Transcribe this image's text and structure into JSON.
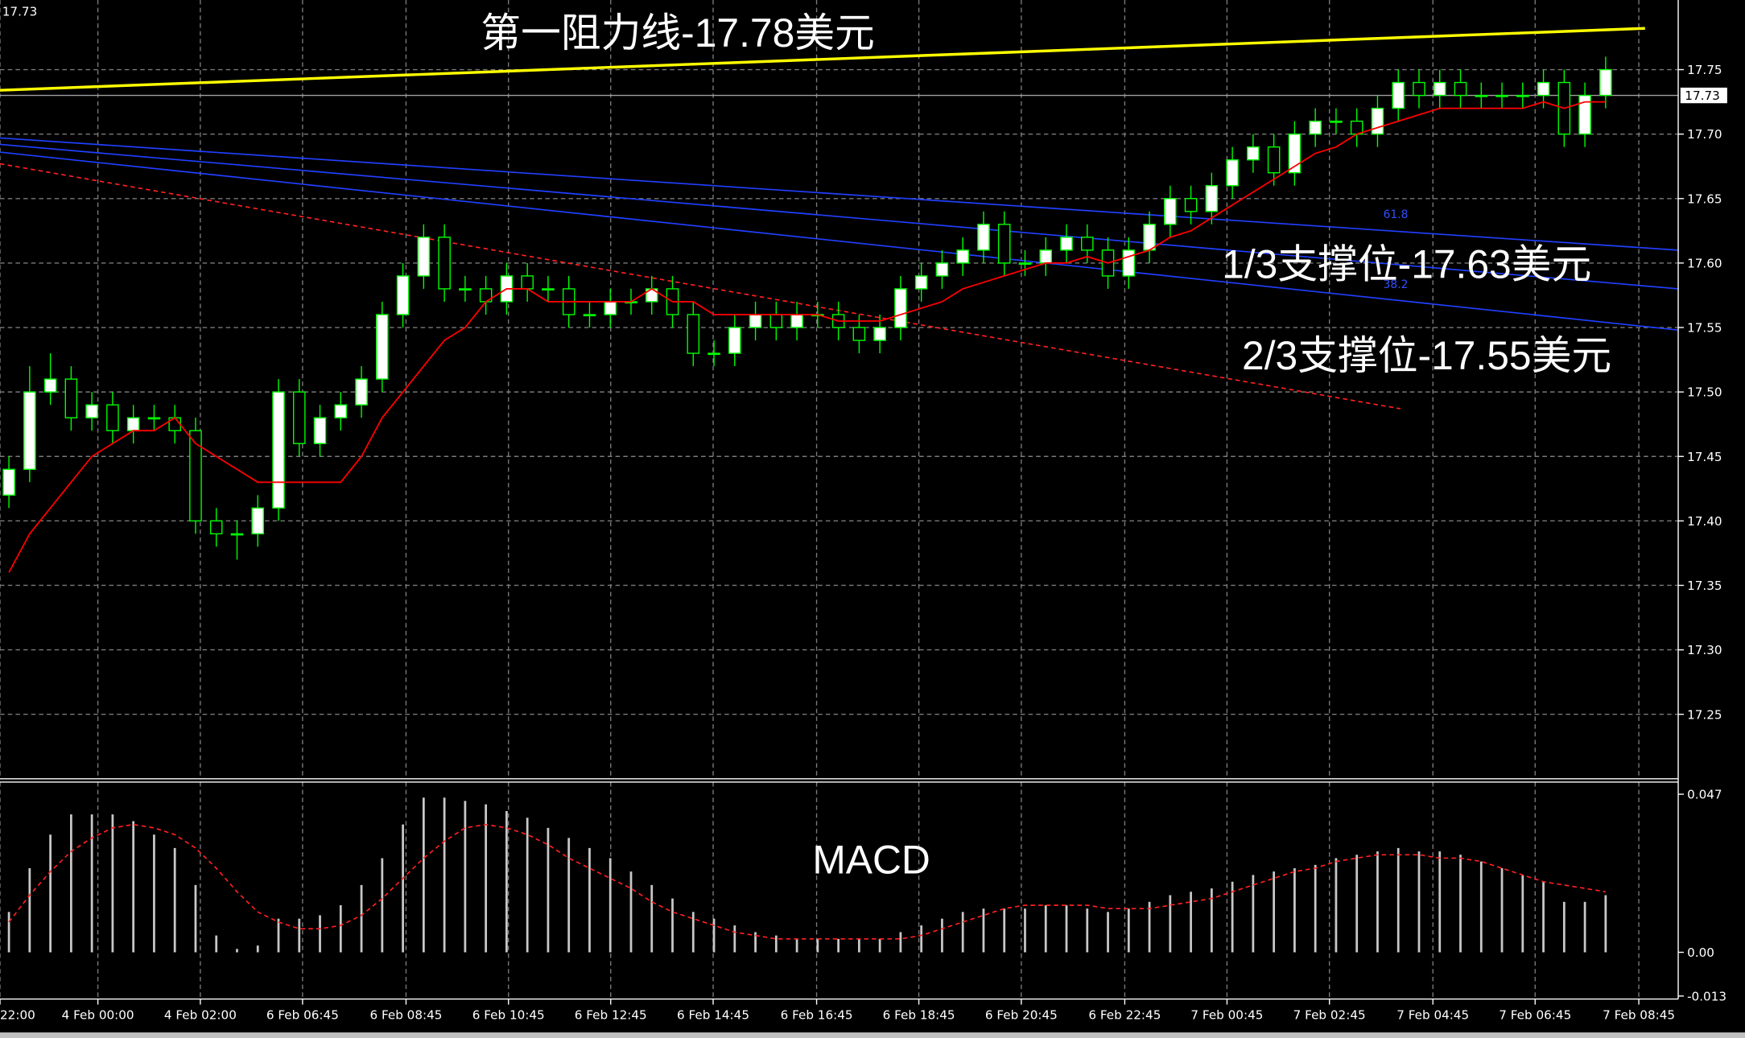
{
  "chart_data": [
    {
      "type": "candlestick",
      "corner_label": 17.73,
      "current_price": 17.73,
      "ylim": [
        17.2,
        17.804
      ],
      "yticks": [
        17.25,
        17.3,
        17.35,
        17.4,
        17.45,
        17.5,
        17.55,
        17.6,
        17.65,
        17.7,
        17.75
      ],
      "yticks_labels_fixed": true,
      "xlim": [
        -0.43,
        80.5
      ],
      "xticks": [
        {
          "value": -0.43,
          "label": "22:00"
        },
        {
          "value": 4.29,
          "label": "4 Feb 00:00"
        },
        {
          "value": 9.23,
          "label": "4 Feb 02:00"
        },
        {
          "value": 14.16,
          "label": "6 Feb 06:45"
        },
        {
          "value": 19.15,
          "label": "6 Feb 08:45"
        },
        {
          "value": 24.09,
          "label": "6 Feb 10:45"
        },
        {
          "value": 29.02,
          "label": "6 Feb 12:45"
        },
        {
          "value": 33.96,
          "label": "6 Feb 14:45"
        },
        {
          "value": 38.95,
          "label": "6 Feb 16:45"
        },
        {
          "value": 43.88,
          "label": "6 Feb 18:45"
        },
        {
          "value": 48.82,
          "label": "6 Feb 20:45"
        },
        {
          "value": 53.81,
          "label": "6 Feb 22:45"
        },
        {
          "value": 58.74,
          "label": "7 Feb 00:45"
        },
        {
          "value": 63.68,
          "label": "7 Feb 02:45"
        },
        {
          "value": 68.67,
          "label": "7 Feb 04:45"
        },
        {
          "value": 73.6,
          "label": "7 Feb 06:45"
        },
        {
          "value": 78.6,
          "label": "7 Feb 08:45"
        }
      ],
      "grid": true,
      "candle_color": "#00ff00",
      "open": [
        17.42,
        17.44,
        17.5,
        17.51,
        17.48,
        17.49,
        17.47,
        17.48,
        17.48,
        17.47,
        17.4,
        17.39,
        17.39,
        17.41,
        17.5,
        17.46,
        17.48,
        17.49,
        17.51,
        17.56,
        17.59,
        17.62,
        17.58,
        17.58,
        17.57,
        17.59,
        17.58,
        17.58,
        17.56,
        17.56,
        17.57,
        17.57,
        17.58,
        17.56,
        17.53,
        17.53,
        17.55,
        17.56,
        17.55,
        17.56,
        17.56,
        17.55,
        17.54,
        17.55,
        17.58,
        17.59,
        17.6,
        17.61,
        17.63,
        17.6,
        17.6,
        17.61,
        17.62,
        17.61,
        17.59,
        17.61,
        17.63,
        17.65,
        17.64,
        17.66,
        17.68,
        17.69,
        17.67,
        17.7,
        17.71,
        17.71,
        17.7,
        17.72,
        17.74,
        17.73,
        17.74,
        17.73,
        17.73,
        17.73,
        17.73,
        17.74,
        17.7,
        17.73
      ],
      "high": [
        17.45,
        17.52,
        17.53,
        17.52,
        17.5,
        17.5,
        17.49,
        17.49,
        17.49,
        17.48,
        17.41,
        17.4,
        17.42,
        17.51,
        17.51,
        17.49,
        17.5,
        17.52,
        17.57,
        17.6,
        17.63,
        17.63,
        17.59,
        17.59,
        17.6,
        17.6,
        17.59,
        17.59,
        17.57,
        17.58,
        17.58,
        17.59,
        17.59,
        17.57,
        17.54,
        17.56,
        17.57,
        17.57,
        17.57,
        17.57,
        17.57,
        17.56,
        17.56,
        17.59,
        17.6,
        17.61,
        17.62,
        17.64,
        17.64,
        17.61,
        17.62,
        17.63,
        17.63,
        17.62,
        17.62,
        17.64,
        17.66,
        17.66,
        17.67,
        17.69,
        17.7,
        17.7,
        17.71,
        17.72,
        17.72,
        17.72,
        17.73,
        17.75,
        17.75,
        17.75,
        17.75,
        17.74,
        17.74,
        17.74,
        17.75,
        17.75,
        17.74,
        17.76
      ],
      "low": [
        17.41,
        17.43,
        17.49,
        17.47,
        17.47,
        17.46,
        17.46,
        17.47,
        17.46,
        17.39,
        17.38,
        17.37,
        17.38,
        17.4,
        17.45,
        17.45,
        17.47,
        17.48,
        17.5,
        17.55,
        17.58,
        17.57,
        17.57,
        17.56,
        17.56,
        17.57,
        17.57,
        17.55,
        17.55,
        17.55,
        17.56,
        17.56,
        17.55,
        17.52,
        17.52,
        17.52,
        17.54,
        17.54,
        17.54,
        17.55,
        17.54,
        17.53,
        17.53,
        17.54,
        17.57,
        17.58,
        17.59,
        17.6,
        17.59,
        17.59,
        17.59,
        17.6,
        17.6,
        17.58,
        17.58,
        17.6,
        17.62,
        17.63,
        17.63,
        17.65,
        17.67,
        17.66,
        17.66,
        17.69,
        17.7,
        17.69,
        17.69,
        17.71,
        17.72,
        17.72,
        17.72,
        17.72,
        17.72,
        17.72,
        17.72,
        17.69,
        17.69,
        17.72
      ],
      "close": [
        17.44,
        17.5,
        17.51,
        17.48,
        17.49,
        17.47,
        17.48,
        17.48,
        17.47,
        17.4,
        17.39,
        17.39,
        17.41,
        17.5,
        17.46,
        17.48,
        17.49,
        17.51,
        17.56,
        17.59,
        17.62,
        17.58,
        17.58,
        17.57,
        17.59,
        17.58,
        17.58,
        17.56,
        17.56,
        17.57,
        17.57,
        17.58,
        17.56,
        17.53,
        17.53,
        17.55,
        17.56,
        17.55,
        17.56,
        17.56,
        17.55,
        17.54,
        17.55,
        17.58,
        17.59,
        17.6,
        17.61,
        17.63,
        17.6,
        17.6,
        17.61,
        17.62,
        17.61,
        17.59,
        17.61,
        17.63,
        17.65,
        17.64,
        17.66,
        17.68,
        17.69,
        17.67,
        17.7,
        17.71,
        17.71,
        17.7,
        17.72,
        17.74,
        17.73,
        17.74,
        17.73,
        17.73,
        17.73,
        17.73,
        17.74,
        17.7,
        17.73,
        17.75
      ],
      "ma": {
        "color": "#ff0000",
        "values": [
          17.36,
          17.39,
          17.41,
          17.43,
          17.45,
          17.46,
          17.47,
          17.47,
          17.48,
          17.46,
          17.45,
          17.44,
          17.43,
          17.43,
          17.43,
          17.43,
          17.43,
          17.45,
          17.48,
          17.5,
          17.52,
          17.54,
          17.55,
          17.57,
          17.58,
          17.58,
          17.57,
          17.57,
          17.57,
          17.57,
          17.57,
          17.58,
          17.57,
          17.57,
          17.56,
          17.56,
          17.56,
          17.56,
          17.56,
          17.56,
          17.555,
          17.555,
          17.555,
          17.56,
          17.565,
          17.57,
          17.58,
          17.585,
          17.59,
          17.595,
          17.6,
          17.6,
          17.605,
          17.6,
          17.605,
          17.61,
          17.62,
          17.625,
          17.635,
          17.645,
          17.655,
          17.665,
          17.675,
          17.685,
          17.69,
          17.7,
          17.705,
          17.71,
          17.715,
          17.72,
          17.72,
          17.72,
          17.72,
          17.72,
          17.725,
          17.72,
          17.725,
          17.725
        ]
      },
      "lines": [
        {
          "color": "#ffff00",
          "dash": false,
          "x": [
            -0.43,
            78.9
          ],
          "y": [
            17.734,
            17.782
          ]
        },
        {
          "color": "#2040ff",
          "dash": false,
          "x": [
            -0.43,
            80.5
          ],
          "y": [
            17.697,
            17.61
          ]
        },
        {
          "color": "#2040ff",
          "dash": false,
          "x": [
            -0.43,
            80.5
          ],
          "y": [
            17.692,
            17.58
          ]
        },
        {
          "color": "#2040ff",
          "dash": false,
          "x": [
            -0.43,
            80.5
          ],
          "y": [
            17.686,
            17.548
          ]
        },
        {
          "color": "#ff2020",
          "dash": true,
          "x": [
            -0.43,
            67.1
          ],
          "y": [
            17.677,
            17.487
          ]
        }
      ],
      "fib_labels": [
        61.8,
        38.2
      ],
      "annotations": [
        "第一阻力线-17.78美元",
        "1/3支撑位-17.63美元",
        "2/3支撑位-17.55美元"
      ]
    },
    {
      "type": "macd",
      "title": "MACD",
      "ylim": [
        -0.0139,
        0.0506
      ],
      "yticks": [
        {
          "value": 0.047,
          "label": "0.047"
        },
        {
          "value": 0,
          "label": "0.00"
        },
        {
          "value": -0.013,
          "label": "-0.013"
        }
      ],
      "series": [
        {
          "type": "bar",
          "color": "#c8c8c8",
          "values": [
            0.012,
            0.025,
            0.035,
            0.041,
            0.041,
            0.041,
            0.039,
            0.035,
            0.031,
            0.02,
            0.005,
            0.001,
            0.002,
            0.01,
            0.01,
            0.011,
            0.014,
            0.02,
            0.028,
            0.038,
            0.046,
            0.046,
            0.045,
            0.044,
            0.042,
            0.04,
            0.037,
            0.034,
            0.031,
            0.028,
            0.024,
            0.02,
            0.016,
            0.012,
            0.01,
            0.008,
            0.006,
            0.005,
            0.004,
            0.004,
            0.004,
            0.004,
            0.004,
            0.006,
            0.008,
            0.01,
            0.012,
            0.013,
            0.013,
            0.013,
            0.014,
            0.014,
            0.013,
            0.012,
            0.013,
            0.015,
            0.017,
            0.018,
            0.019,
            0.021,
            0.023,
            0.024,
            0.025,
            0.026,
            0.028,
            0.029,
            0.03,
            0.031,
            0.03,
            0.03,
            0.029,
            0.027,
            0.025,
            0.023,
            0.021,
            0.015,
            0.015,
            0.017
          ]
        },
        {
          "type": "line",
          "color": "#ff2020",
          "values": [
            0.009,
            0.017,
            0.024,
            0.03,
            0.034,
            0.037,
            0.038,
            0.037,
            0.035,
            0.031,
            0.025,
            0.018,
            0.012,
            0.009,
            0.007,
            0.007,
            0.008,
            0.011,
            0.016,
            0.022,
            0.028,
            0.033,
            0.037,
            0.038,
            0.037,
            0.035,
            0.032,
            0.028,
            0.025,
            0.022,
            0.019,
            0.015,
            0.012,
            0.01,
            0.008,
            0.006,
            0.005,
            0.004,
            0.004,
            0.004,
            0.004,
            0.004,
            0.004,
            0.004,
            0.005,
            0.007,
            0.009,
            0.011,
            0.013,
            0.014,
            0.014,
            0.014,
            0.014,
            0.013,
            0.013,
            0.013,
            0.014,
            0.015,
            0.016,
            0.018,
            0.02,
            0.022,
            0.024,
            0.025,
            0.027,
            0.028,
            0.029,
            0.029,
            0.029,
            0.028,
            0.028,
            0.027,
            0.025,
            0.023,
            0.021,
            0.02,
            0.019,
            0.018
          ]
        }
      ]
    }
  ]
}
